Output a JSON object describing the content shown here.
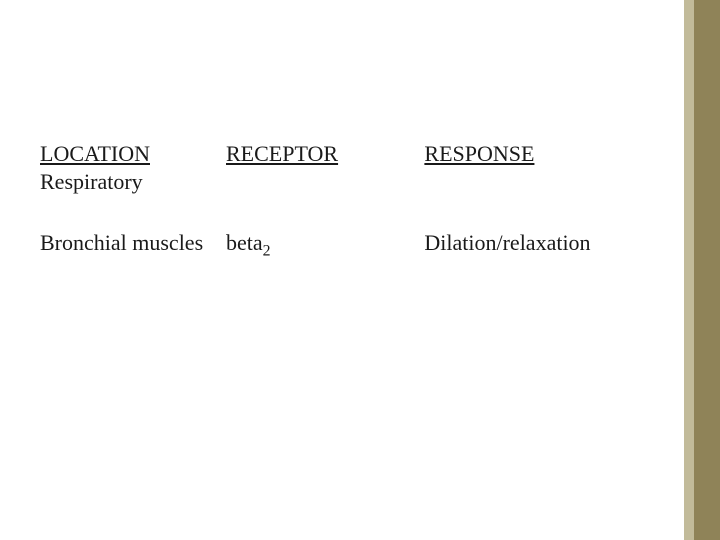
{
  "accent": {
    "light_color": "#c2bb9a",
    "dark_color": "#8f8358"
  },
  "table": {
    "type": "table",
    "text_color": "#1a1a1a",
    "header_fontsize_pt": 17,
    "body_fontsize_pt": 17,
    "columns": [
      {
        "key": "location",
        "header": "LOCATION",
        "width_pct": 30
      },
      {
        "key": "receptor",
        "header": "RECEPTOR",
        "width_pct": 32
      },
      {
        "key": "response",
        "header": "RESPONSE",
        "width_pct": 38
      }
    ],
    "header_subtext": {
      "location": "Respiratory"
    },
    "rows": [
      {
        "location": "Bronchial muscles",
        "receptor_base": "beta",
        "receptor_sub": "2",
        "response": "Dilation/relaxation"
      }
    ]
  }
}
